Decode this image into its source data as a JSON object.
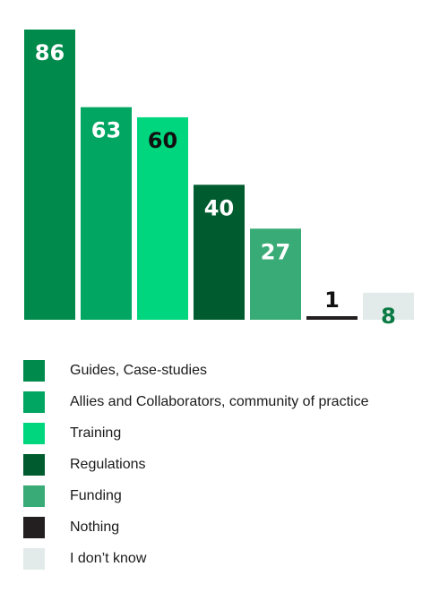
{
  "chart_data": {
    "type": "bar",
    "categories": [
      "Guides, Case-studies",
      "Allies and Collaborators, community of practice",
      "Training",
      "Regulations",
      "Funding",
      "Nothing",
      "I don’t know"
    ],
    "values": [
      86,
      63,
      60,
      40,
      27,
      1,
      8
    ],
    "colors": [
      "#008a4b",
      "#00a661",
      "#00d67d",
      "#005c2e",
      "#38ab76",
      "#231f20",
      "#e3ebea"
    ],
    "label_colors": [
      "#ffffff",
      "#ffffff",
      "#111111",
      "#ffffff",
      "#ffffff",
      "#111111",
      "#0a7a44"
    ],
    "ylim": [
      0,
      86
    ],
    "grid": false,
    "legend_position": "bottom"
  },
  "legend": {
    "items": [
      {
        "label": "Guides, Case-studies",
        "color": "#008a4b"
      },
      {
        "label": "Allies and Collaborators, community of practice",
        "color": "#00a661"
      },
      {
        "label": "Training",
        "color": "#00d67d"
      },
      {
        "label": "Regulations",
        "color": "#005c2e"
      },
      {
        "label": "Funding",
        "color": "#38ab76"
      },
      {
        "label": "Nothing",
        "color": "#231f20"
      },
      {
        "label": "I don’t know",
        "color": "#e3ebea"
      }
    ]
  }
}
